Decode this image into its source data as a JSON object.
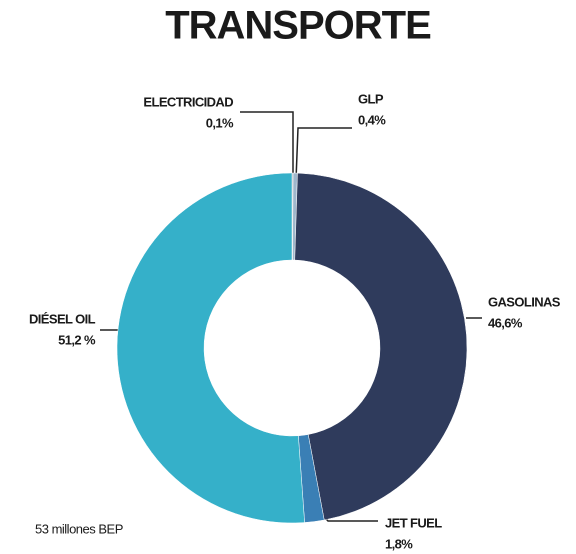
{
  "chart_data": {
    "type": "donut",
    "title": "TRANSPORTE",
    "categories": [
      "ELECTRICIDAD",
      "GLP",
      "GASOLINAS",
      "JET FUEL",
      "DIÉSEL OIL"
    ],
    "values": [
      0.1,
      0.4,
      46.6,
      1.8,
      51.2
    ],
    "value_labels": [
      "0,1%",
      "0,4%",
      "46,6%",
      "1,8%",
      "51,2 %"
    ],
    "colors": [
      "#8a8f99",
      "#9fb7cc",
      "#2f3b5c",
      "#3a7fb5",
      "#35b0c9"
    ],
    "annotation": "53 millones BEP"
  }
}
